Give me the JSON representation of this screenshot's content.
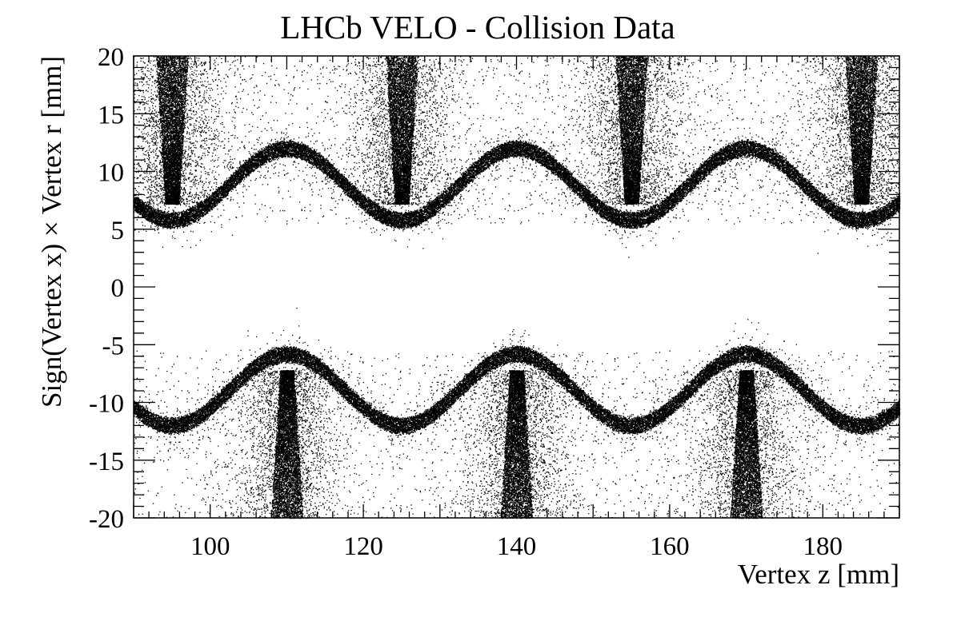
{
  "chart_data": {
    "type": "scatter",
    "title": "LHCb VELO - Collision Data",
    "xlabel": "Vertex z [mm]",
    "ylabel": "Sign(Vertex x) × Vertex r [mm]",
    "xlim": [
      90,
      190
    ],
    "ylim": [
      -20,
      20
    ],
    "x_ticks": [
      100,
      120,
      140,
      160,
      180
    ],
    "y_ticks": [
      -20,
      -15,
      -10,
      -5,
      0,
      5,
      10,
      15,
      20
    ],
    "x_tick_labels": [
      "100",
      "120",
      "140",
      "160",
      "180"
    ],
    "y_tick_labels": [
      "-20",
      "-15",
      "-10",
      "-5",
      "0",
      "5",
      "10",
      "15",
      "20"
    ],
    "grid": false,
    "marker_color": "#000000",
    "bands": [
      {
        "name": "",
        "period_mm": 30,
        "r_min": 5.8,
        "r_max": 12.0,
        "r_min_at_z": [
          95,
          125,
          155,
          185
        ],
        "r_max_at_z": [
          110,
          140,
          170
        ]
      },
      {
        "name": "",
        "period_mm": 30,
        "r_min": -12.0,
        "r_max": -5.8,
        "r_min_at_z": [
          95,
          125,
          155,
          185
        ],
        "r_max_at_z": [
          110,
          140,
          170
        ]
      }
    ],
    "foil_clusters": [
      {
        "z": 95,
        "r_from": 7.2,
        "r_to": 20
      },
      {
        "z": 125,
        "r_from": 7.2,
        "r_to": 20
      },
      {
        "z": 155,
        "r_from": 7.2,
        "r_to": 20
      },
      {
        "z": 185,
        "r_from": 7.2,
        "r_to": 20
      },
      {
        "z": 110,
        "r_from": -7.2,
        "r_to": -20
      },
      {
        "z": 140,
        "r_from": -7.2,
        "r_to": -20
      },
      {
        "z": 170,
        "r_from": -7.2,
        "r_to": -20
      }
    ]
  }
}
